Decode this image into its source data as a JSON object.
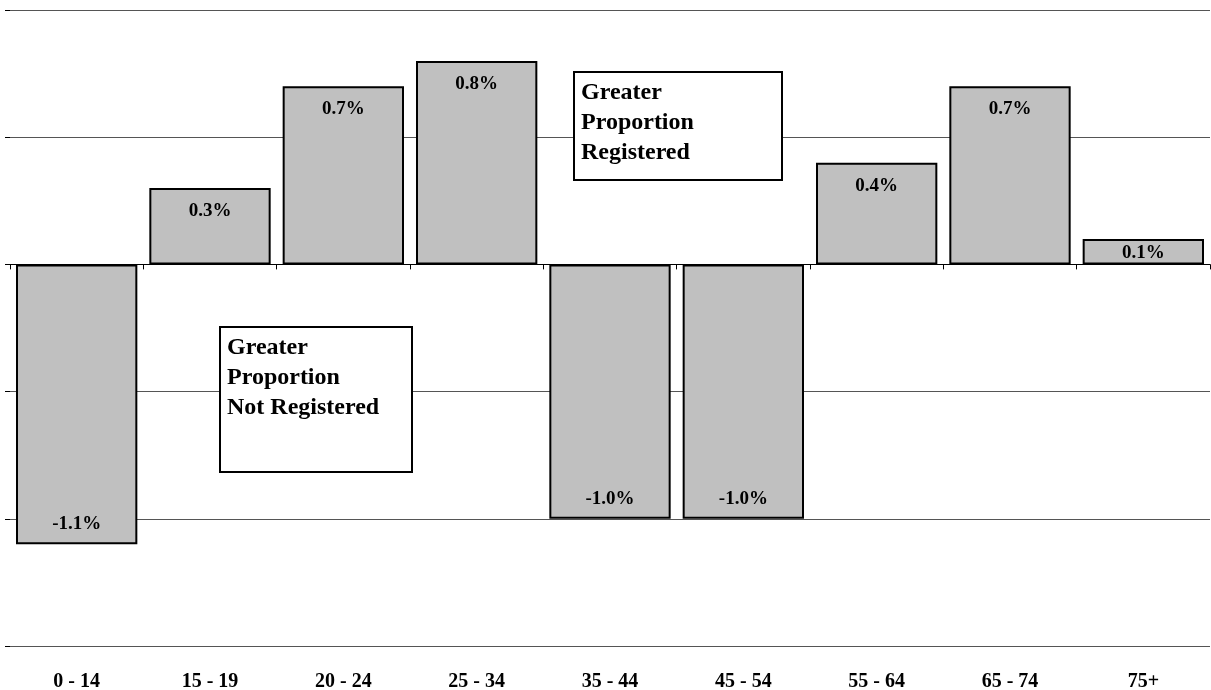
{
  "chart_data": {
    "type": "bar",
    "categories": [
      "0 - 14",
      "15 - 19",
      "20 - 24",
      "25 - 34",
      "35 - 44",
      "45 - 54",
      "55 - 64",
      "65 - 74",
      "75+"
    ],
    "values": [
      -1.1,
      0.3,
      0.7,
      0.8,
      -1.0,
      -1.0,
      0.4,
      0.7,
      0.1
    ],
    "value_labels": [
      "-1.1%",
      "0.3%",
      "0.7%",
      "0.8%",
      "-1.0%",
      "-1.0%",
      "0.4%",
      "0.7%",
      "0.1%"
    ],
    "color": "#c0c0c0",
    "ylim": [
      -1.5,
      1.0
    ],
    "yticks": [
      {
        "value": -1.5,
        "label": null
      },
      {
        "value": -1.0,
        "label": null
      },
      {
        "value": -0.5,
        "label": null
      },
      {
        "value": 0,
        "label": null
      },
      {
        "value": 0.5,
        "label": null
      },
      {
        "value": 1.0,
        "label": null
      }
    ],
    "tick_labels": "x",
    "grid": "y",
    "annotations": [
      "Greater\nProportion\nRegistered",
      "Greater\nProportion\nNot Registered"
    ]
  }
}
